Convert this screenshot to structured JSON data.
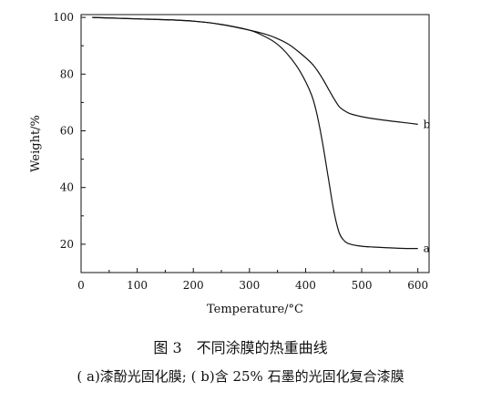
{
  "chart_data": {
    "type": "line",
    "xlabel": "Temperature/°C",
    "ylabel": "Weight/%",
    "xlim": [
      0,
      620
    ],
    "ylim": [
      10,
      101
    ],
    "x_ticks": [
      0,
      100,
      200,
      300,
      400,
      500,
      600
    ],
    "y_ticks": [
      20,
      40,
      60,
      80,
      100
    ],
    "grid": false,
    "series": [
      {
        "name": "a",
        "x": [
          20,
          50,
          100,
          150,
          200,
          250,
          300,
          330,
          350,
          370,
          390,
          410,
          420,
          430,
          440,
          450,
          460,
          470,
          480,
          500,
          520,
          550,
          580,
          600
        ],
        "y": [
          100,
          99.8,
          99.5,
          99.2,
          98.7,
          97.5,
          95.5,
          93,
          90.5,
          86.5,
          81,
          73,
          66,
          56,
          44,
          32,
          24,
          21,
          20,
          19.3,
          19,
          18.7,
          18.5,
          18.5
        ]
      },
      {
        "name": "b",
        "x": [
          20,
          50,
          100,
          150,
          200,
          250,
          300,
          330,
          350,
          370,
          390,
          410,
          420,
          430,
          440,
          450,
          460,
          470,
          480,
          500,
          520,
          550,
          580,
          600
        ],
        "y": [
          100,
          99.8,
          99.5,
          99.2,
          98.7,
          97.5,
          95.5,
          94,
          92.5,
          90.5,
          87.5,
          84,
          81.5,
          78.5,
          75,
          71.5,
          68.5,
          67,
          66,
          65,
          64.3,
          63.5,
          62.8,
          62.3
        ]
      }
    ]
  },
  "caption": {
    "title": "图 3　不同涂膜的热重曲线",
    "note": "( a)漆酚光固化膜; ( b)含 25% 石墨的光固化复合漆膜"
  }
}
